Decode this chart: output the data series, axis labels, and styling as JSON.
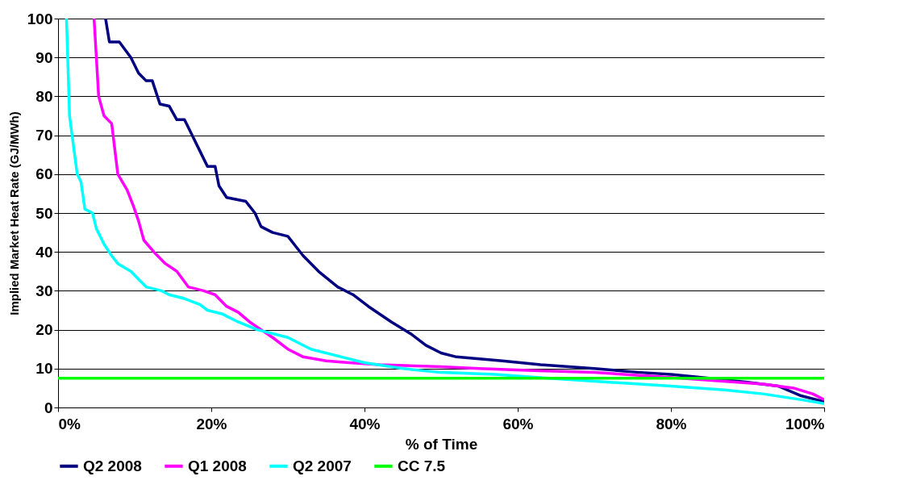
{
  "chart_data": {
    "type": "line",
    "xlabel": "% of Time",
    "ylabel": "Implied Market Heat Rate (GJ/MWh)",
    "xlim": [
      0,
      100
    ],
    "ylim": [
      0,
      100
    ],
    "xticks": [
      {
        "value": 0,
        "label": "0%"
      },
      {
        "value": 20,
        "label": "20%"
      },
      {
        "value": 40,
        "label": "40%"
      },
      {
        "value": 60,
        "label": "60%"
      },
      {
        "value": 80,
        "label": "80%"
      },
      {
        "value": 100,
        "label": "100%"
      }
    ],
    "yticks": [
      0,
      10,
      20,
      30,
      40,
      50,
      60,
      70,
      80,
      90,
      100
    ],
    "grid": "y",
    "legend": "bottom",
    "marker": "none",
    "line_style": "solid",
    "series": [
      {
        "name": "Q2 2008",
        "color": "#000080",
        "x": [
          6.2,
          6.7,
          8,
          9.5,
          10.5,
          11.5,
          12.3,
          13.3,
          14.5,
          15.5,
          16.5,
          17.5,
          18.5,
          19.5,
          20.5,
          21,
          22,
          24.5,
          25.7,
          26.5,
          28,
          30,
          31,
          32,
          34,
          36.5,
          38.5,
          40.5,
          43.5,
          46,
          48,
          50,
          52,
          55,
          58,
          63,
          70,
          76,
          80,
          85,
          90,
          94,
          97,
          99,
          100
        ],
        "values": [
          100,
          94,
          94,
          90,
          86,
          84,
          84,
          78,
          77.5,
          74,
          74,
          70,
          66,
          62,
          62,
          57,
          54,
          53,
          50,
          46.5,
          45,
          44,
          41.5,
          39,
          35,
          31,
          29,
          26,
          22,
          19,
          16,
          14,
          13,
          12.5,
          12,
          11,
          10,
          9,
          8.5,
          7.5,
          6.5,
          5.5,
          3,
          2,
          1.5
        ]
      },
      {
        "name": "Q1 2008",
        "color": "#ff00ff",
        "x": [
          4.7,
          5.3,
          6,
          7,
          7.8,
          9,
          9.8,
          10.5,
          11.2,
          12.5,
          14,
          15.5,
          17,
          19,
          20.5,
          22,
          23.5,
          25,
          26.5,
          28,
          30,
          32,
          35,
          38,
          42,
          50,
          55,
          62,
          70,
          78,
          85,
          92,
          96,
          98.5,
          100
        ],
        "values": [
          100,
          80,
          75,
          73,
          60,
          56,
          52,
          48,
          43,
          40,
          37,
          35,
          31,
          30,
          29,
          26,
          24.5,
          22,
          20,
          18,
          15,
          13,
          12,
          11.5,
          11,
          10.5,
          10,
          9.5,
          9,
          8,
          7,
          6,
          5,
          3.5,
          2
        ]
      },
      {
        "name": "Q2 2007",
        "color": "#00ffff",
        "x": [
          1.1,
          1.5,
          2.5,
          3,
          3.5,
          4.5,
          5,
          6,
          7,
          7.8,
          9.5,
          10.5,
          11.5,
          13.5,
          14.5,
          16.5,
          18.5,
          19.5,
          21.5,
          23.5,
          26,
          30,
          33,
          37,
          40,
          45,
          50,
          57,
          64,
          72,
          80,
          87,
          92,
          97,
          100
        ],
        "values": [
          100,
          75,
          60,
          58,
          51,
          50,
          46,
          42,
          39,
          37,
          35,
          33,
          31,
          30,
          29,
          28,
          26.5,
          25,
          24,
          22,
          20,
          18,
          15,
          13,
          11.5,
          10,
          9,
          8.5,
          7.5,
          6.5,
          5.5,
          4.5,
          3.5,
          2,
          1
        ]
      },
      {
        "name": "CC 7.5",
        "color": "#00ff00",
        "x": [
          0,
          100
        ],
        "values": [
          7.5,
          7.5
        ]
      }
    ]
  }
}
